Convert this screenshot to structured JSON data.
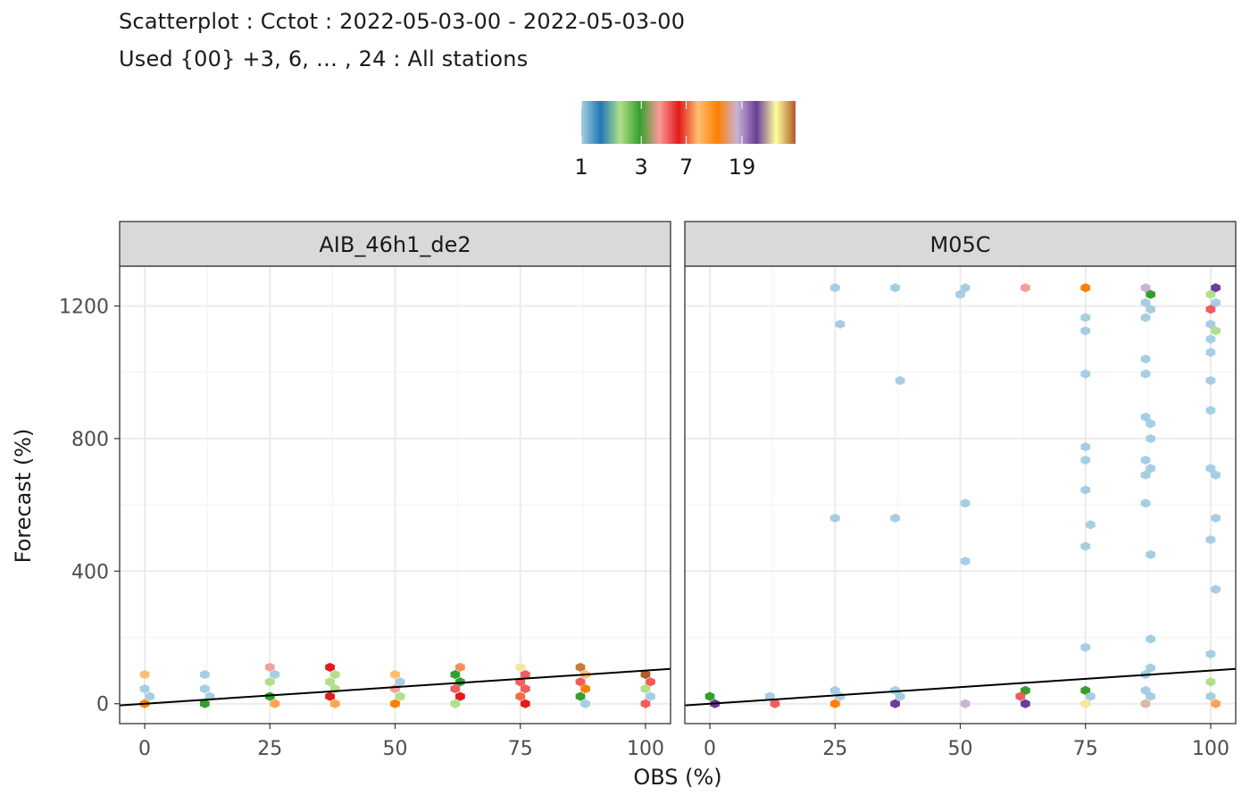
{
  "title": "Scatterplot : Cctot : 2022-05-03-00 - 2022-05-03-00",
  "subtitle": "Used {00} +3, 6, … , 24 : All stations",
  "chart_data": {
    "type": "scatter",
    "subtype": "hexbin",
    "xlabel": "OBS (%)",
    "ylabel": "Forecast (%)",
    "xlim": [
      -5,
      105
    ],
    "ylim": [
      -60,
      1320
    ],
    "x_ticks": [
      0,
      25,
      50,
      75,
      100
    ],
    "y_ticks": [
      0,
      400,
      800,
      1200
    ],
    "grid": true,
    "legend": {
      "position": "top",
      "type": "colorbar",
      "labels": [
        "1",
        "3",
        "7",
        "19"
      ],
      "palette": [
        "#A6CEE3",
        "#1F78B4",
        "#B2DF8A",
        "#33A02C",
        "#FB9A99",
        "#E31A1C",
        "#FDBF6F",
        "#FF7F00",
        "#CAB2D6",
        "#6A3D9A",
        "#FFFF99",
        "#B15928"
      ]
    },
    "reference_line": {
      "type": "identity",
      "color": "#000000"
    },
    "panels": [
      {
        "name": "AIB_46h1_de2",
        "points": [
          [
            0,
            88,
            "#FDBF6F"
          ],
          [
            0,
            45,
            "#A6CEE3"
          ],
          [
            1,
            22,
            "#A6CEE3"
          ],
          [
            0,
            0,
            "#FF7F00"
          ],
          [
            12,
            88,
            "#A6CEE3"
          ],
          [
            12,
            45,
            "#A6CEE3"
          ],
          [
            13,
            22,
            "#A6CEE3"
          ],
          [
            12,
            0,
            "#33A02C"
          ],
          [
            25,
            110,
            "#F4A09A"
          ],
          [
            26,
            88,
            "#A6CEE3"
          ],
          [
            25,
            66,
            "#B2DF8A"
          ],
          [
            25,
            22,
            "#33A02C"
          ],
          [
            26,
            0,
            "#FDA44E"
          ],
          [
            37,
            110,
            "#E31A1C"
          ],
          [
            38,
            88,
            "#B2DF8A"
          ],
          [
            37,
            66,
            "#B2DF8A"
          ],
          [
            38,
            45,
            "#B2DF8A"
          ],
          [
            37,
            22,
            "#E31A1C"
          ],
          [
            38,
            0,
            "#FDA44E"
          ],
          [
            50,
            88,
            "#FDBF6F"
          ],
          [
            51,
            66,
            "#A6CEE3"
          ],
          [
            50,
            45,
            "#F4A09A"
          ],
          [
            51,
            22,
            "#B2DF8A"
          ],
          [
            50,
            0,
            "#FF7F00"
          ],
          [
            63,
            110,
            "#F88B5E"
          ],
          [
            62,
            88,
            "#33A02C"
          ],
          [
            63,
            66,
            "#33A02C"
          ],
          [
            62,
            45,
            "#F25C5C"
          ],
          [
            63,
            22,
            "#E31A1C"
          ],
          [
            62,
            0,
            "#B2DF8A"
          ],
          [
            75,
            110,
            "#F5E6A0"
          ],
          [
            76,
            88,
            "#F25C5C"
          ],
          [
            75,
            66,
            "#F25C5C"
          ],
          [
            76,
            45,
            "#F25C5C"
          ],
          [
            75,
            22,
            "#F76B48"
          ],
          [
            76,
            0,
            "#E31A1C"
          ],
          [
            87,
            110,
            "#C8783C"
          ],
          [
            88,
            88,
            "#FDBF6F"
          ],
          [
            87,
            66,
            "#F25C5C"
          ],
          [
            88,
            45,
            "#FF7F00"
          ],
          [
            87,
            22,
            "#33A02C"
          ],
          [
            88,
            0,
            "#A6CEE3"
          ],
          [
            100,
            88,
            "#B15928"
          ],
          [
            101,
            66,
            "#F25C5C"
          ],
          [
            100,
            45,
            "#B2DF8A"
          ],
          [
            101,
            22,
            "#A6CEE3"
          ],
          [
            100,
            0,
            "#F25C5C"
          ]
        ]
      },
      {
        "name": "M05C",
        "points": [
          [
            0,
            22,
            "#33A02C"
          ],
          [
            1,
            0,
            "#6A3D9A"
          ],
          [
            12,
            22,
            "#A6CEE3"
          ],
          [
            13,
            0,
            "#F25C5C"
          ],
          [
            25,
            1255,
            "#A6CEE3"
          ],
          [
            26,
            1145,
            "#A6CEE3"
          ],
          [
            25,
            560,
            "#A6CEE3"
          ],
          [
            25,
            40,
            "#A6CEE3"
          ],
          [
            26,
            22,
            "#A6CEE3"
          ],
          [
            25,
            0,
            "#FF7F00"
          ],
          [
            37,
            1255,
            "#A6CEE3"
          ],
          [
            38,
            975,
            "#A6CEE3"
          ],
          [
            37,
            560,
            "#A6CEE3"
          ],
          [
            37,
            40,
            "#A6CEE3"
          ],
          [
            38,
            22,
            "#A6CEE3"
          ],
          [
            37,
            0,
            "#6A3D9A"
          ],
          [
            51,
            1255,
            "#A6CEE3"
          ],
          [
            50,
            1235,
            "#A6CEE3"
          ],
          [
            51,
            605,
            "#A6CEE3"
          ],
          [
            51,
            430,
            "#A6CEE3"
          ],
          [
            51,
            0,
            "#CAB2D6"
          ],
          [
            63,
            1255,
            "#F4A09A"
          ],
          [
            63,
            40,
            "#33A02C"
          ],
          [
            62,
            22,
            "#F25C5C"
          ],
          [
            63,
            0,
            "#6A3D9A"
          ],
          [
            75,
            1255,
            "#FF7F00"
          ],
          [
            75,
            1165,
            "#A6CEE3"
          ],
          [
            75,
            1125,
            "#A6CEE3"
          ],
          [
            75,
            995,
            "#A6CEE3"
          ],
          [
            75,
            775,
            "#A6CEE3"
          ],
          [
            75,
            735,
            "#A6CEE3"
          ],
          [
            75,
            645,
            "#A6CEE3"
          ],
          [
            76,
            540,
            "#A6CEE3"
          ],
          [
            75,
            475,
            "#A6CEE3"
          ],
          [
            75,
            170,
            "#A6CEE3"
          ],
          [
            75,
            40,
            "#33A02C"
          ],
          [
            76,
            22,
            "#A6CEE3"
          ],
          [
            75,
            0,
            "#F5E6A0"
          ],
          [
            87,
            1255,
            "#CAB2D6"
          ],
          [
            88,
            1235,
            "#33A02C"
          ],
          [
            87,
            1210,
            "#A6CEE3"
          ],
          [
            88,
            1190,
            "#A6CEE3"
          ],
          [
            87,
            1165,
            "#A6CEE3"
          ],
          [
            87,
            1040,
            "#A6CEE3"
          ],
          [
            87,
            995,
            "#A6CEE3"
          ],
          [
            87,
            865,
            "#A6CEE3"
          ],
          [
            88,
            845,
            "#A6CEE3"
          ],
          [
            88,
            800,
            "#A6CEE3"
          ],
          [
            87,
            735,
            "#A6CEE3"
          ],
          [
            88,
            710,
            "#A6CEE3"
          ],
          [
            87,
            690,
            "#A6CEE3"
          ],
          [
            87,
            605,
            "#A6CEE3"
          ],
          [
            88,
            450,
            "#A6CEE3"
          ],
          [
            88,
            195,
            "#A6CEE3"
          ],
          [
            88,
            108,
            "#A6CEE3"
          ],
          [
            87,
            88,
            "#A6CEE3"
          ],
          [
            87,
            40,
            "#A6CEE3"
          ],
          [
            88,
            22,
            "#A6CEE3"
          ],
          [
            87,
            0,
            "#D9B8A8"
          ],
          [
            101,
            1255,
            "#6A3D9A"
          ],
          [
            100,
            1235,
            "#B2DF8A"
          ],
          [
            101,
            1210,
            "#A6CEE3"
          ],
          [
            100,
            1190,
            "#F25C5C"
          ],
          [
            100,
            1145,
            "#A6CEE3"
          ],
          [
            101,
            1125,
            "#B2DF8A"
          ],
          [
            100,
            1100,
            "#A6CEE3"
          ],
          [
            100,
            1060,
            "#A6CEE3"
          ],
          [
            100,
            975,
            "#A6CEE3"
          ],
          [
            100,
            885,
            "#A6CEE3"
          ],
          [
            100,
            710,
            "#A6CEE3"
          ],
          [
            101,
            690,
            "#A6CEE3"
          ],
          [
            101,
            560,
            "#A6CEE3"
          ],
          [
            100,
            495,
            "#A6CEE3"
          ],
          [
            101,
            345,
            "#A6CEE3"
          ],
          [
            100,
            150,
            "#A6CEE3"
          ],
          [
            100,
            66,
            "#B2DF8A"
          ],
          [
            100,
            22,
            "#A6CEE3"
          ],
          [
            101,
            0,
            "#FDA44E"
          ]
        ]
      }
    ]
  }
}
